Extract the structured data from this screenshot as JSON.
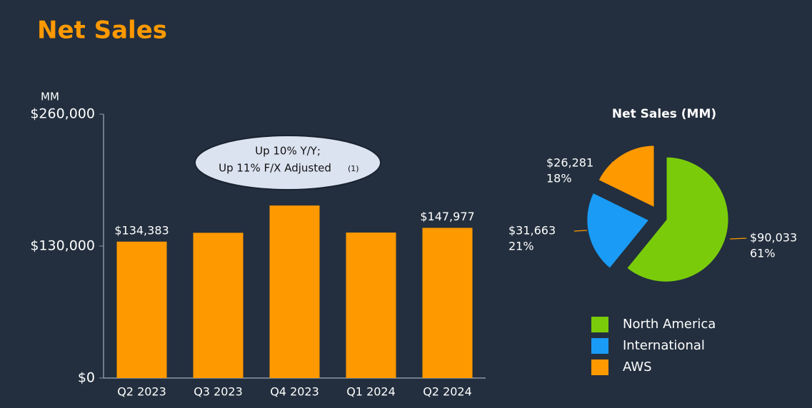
{
  "title": "Net Sales",
  "chart_data": [
    {
      "type": "bar",
      "y_label": "MM",
      "categories": [
        "Q2 2023",
        "Q3 2023",
        "Q4 2023",
        "Q1 2024",
        "Q2 2024"
      ],
      "values": [
        134383,
        143083,
        169961,
        143313,
        147977
      ],
      "value_labels": [
        "$134,383",
        null,
        null,
        null,
        "$147,977"
      ],
      "color": "#ff9900",
      "ylim": [
        0,
        260000
      ],
      "yticks": [
        {
          "value": 0,
          "label": "$0"
        },
        {
          "value": 130000,
          "label": "$130,000"
        },
        {
          "value": 260000,
          "label": "$260,000"
        }
      ],
      "annotation": {
        "lines": [
          "Up 10% Y/Y;",
          "Up 11% F/X Adjusted"
        ],
        "note": "(1)"
      }
    },
    {
      "type": "pie",
      "title": "Net Sales (MM)",
      "categories": [
        "North America",
        "International",
        "AWS"
      ],
      "values": [
        90033,
        31663,
        26281
      ],
      "value_labels": [
        "$90,033",
        "$31,663",
        "$26,281"
      ],
      "share_labels": [
        "61%",
        "21%",
        "18%"
      ],
      "colors": [
        "#7acc0a",
        "#1a9bf5",
        "#ff9900"
      ],
      "legend": "bottom"
    }
  ]
}
